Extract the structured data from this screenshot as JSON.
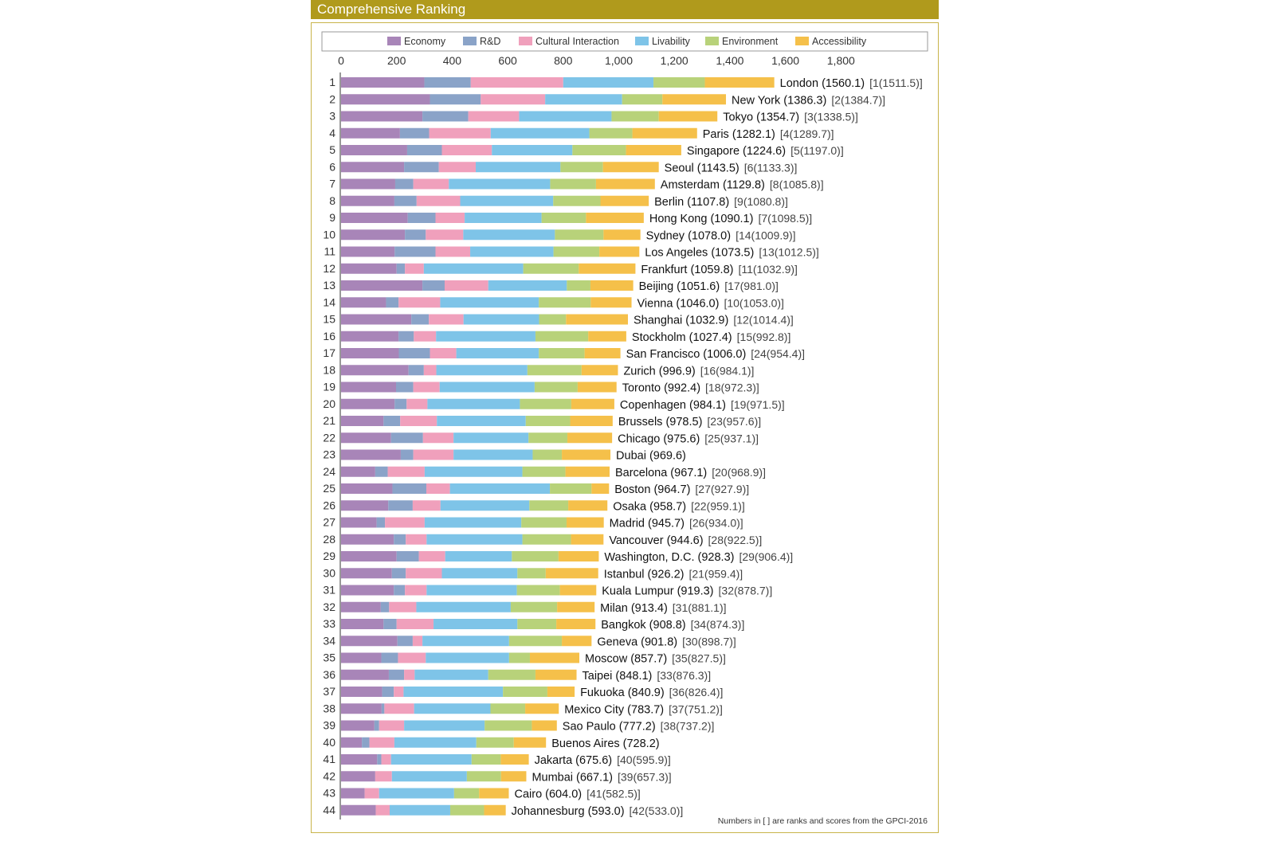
{
  "header": {
    "title": "Comprehensive Ranking"
  },
  "footnote": "Numbers in [  ] are ranks and scores from the GPCI-2016",
  "colors": {
    "Economy": "#a885b8",
    "R&D": "#8aa3c8",
    "Cultural Interaction": "#f0a0bc",
    "Livability": "#7ec4e8",
    "Environment": "#b8d27a",
    "Accessibility": "#f5c04a"
  },
  "chart_data": {
    "type": "bar",
    "orientation": "horizontal",
    "stacked": true,
    "xlim": [
      0,
      1800
    ],
    "xticks": [
      "0",
      "200",
      "400",
      "600",
      "800",
      "1,000",
      "1,200",
      "1,400",
      "1,600",
      "1,800"
    ],
    "legend": [
      "Economy",
      "R&D",
      "Cultural Interaction",
      "Livability",
      "Environment",
      "Accessibility"
    ],
    "legend_position": "top",
    "categories": [
      "1",
      "2",
      "3",
      "4",
      "5",
      "6",
      "7",
      "8",
      "9",
      "10",
      "11",
      "12",
      "13",
      "14",
      "15",
      "16",
      "17",
      "18",
      "19",
      "20",
      "21",
      "22",
      "23",
      "24",
      "25",
      "26",
      "27",
      "28",
      "29",
      "30",
      "31",
      "32",
      "33",
      "34",
      "35",
      "36",
      "37",
      "38",
      "39",
      "40",
      "41",
      "42",
      "43",
      "44"
    ],
    "cities": [
      "London (1560.1)",
      "New York (1386.3)",
      "Tokyo (1354.7)",
      "Paris (1282.1)",
      "Singapore (1224.6)",
      "Seoul (1143.5)",
      "Amsterdam (1129.8)",
      "Berlin (1107.8)",
      "Hong Kong (1090.1)",
      "Sydney (1078.0)",
      "Los Angeles (1073.5)",
      "Frankfurt (1059.8)",
      "Beijing (1051.6)",
      "Vienna (1046.0)",
      "Shanghai (1032.9)",
      "Stockholm (1027.4)",
      "San Francisco (1006.0)",
      "Zurich (996.9)",
      "Toronto (992.4)",
      "Copenhagen (984.1)",
      "Brussels (978.5)",
      "Chicago (975.6)",
      "Dubai (969.6)",
      "Barcelona (967.1)",
      "Boston (964.7)",
      "Osaka (958.7)",
      "Madrid (945.7)",
      "Vancouver (944.6)",
      "Washington, D.C. (928.3)",
      "Istanbul (926.2)",
      "Kuala Lumpur (919.3)",
      "Milan (913.4)",
      "Bangkok (908.8)",
      "Geneva (901.8)",
      "Moscow (857.7)",
      "Taipei (848.1)",
      "Fukuoka (840.9)",
      "Mexico City (783.7)",
      "Sao Paulo (777.2)",
      "Buenos Aires (728.2)",
      "Jakarta (675.6)",
      "Mumbai (667.1)",
      "Cairo (604.0)",
      "Johannesburg (593.0)"
    ],
    "previous": [
      "[1(1511.5)]",
      "[2(1384.7)]",
      "[3(1338.5)]",
      "[4(1289.7)]",
      "[5(1197.0)]",
      "[6(1133.3)]",
      "[8(1085.8)]",
      "[9(1080.8)]",
      "[7(1098.5)]",
      "[14(1009.9)]",
      "[13(1012.5)]",
      "[11(1032.9)]",
      "[17(981.0)]",
      "[10(1053.0)]",
      "[12(1014.4)]",
      "[15(992.8)]",
      "[24(954.4)]",
      "[16(984.1)]",
      "[18(972.3)]",
      "[19(971.5)]",
      "[23(957.6)]",
      "[25(937.1)]",
      "",
      "[20(968.9)]",
      "[27(927.9)]",
      "[22(959.1)]",
      "[26(934.0)]",
      "[28(922.5)]",
      "[29(906.4)]",
      "[21(959.4)]",
      "[32(878.7)]",
      "[31(881.1)]",
      "[34(874.3)]",
      "[30(898.7)]",
      "[35(827.5)]",
      "[33(876.3)]",
      "[36(826.4)]",
      "[37(751.2)]",
      "[38(737.2)]",
      "",
      "[40(595.9)]",
      "[39(657.3)]",
      "[41(582.5)]",
      "[42(533.0)]"
    ],
    "series": [
      {
        "name": "Economy",
        "values": [
          300,
          320,
          293,
          212,
          238,
          227,
          195,
          192,
          240,
          230,
          193,
          200,
          293,
          162,
          253,
          207,
          208,
          243,
          198,
          193,
          153,
          180,
          215,
          123,
          185,
          170,
          128,
          190,
          200,
          183,
          190,
          143,
          153,
          203,
          145,
          172,
          148,
          146,
          120,
          75,
          130,
          123,
          85,
          125
        ]
      },
      {
        "name": "R&D",
        "values": [
          167,
          183,
          165,
          105,
          125,
          125,
          65,
          80,
          100,
          75,
          147,
          30,
          80,
          45,
          63,
          55,
          112,
          55,
          62,
          43,
          60,
          115,
          45,
          45,
          122,
          88,
          30,
          43,
          80,
          50,
          40,
          30,
          47,
          55,
          60,
          55,
          42,
          10,
          17,
          27,
          15,
          0,
          0,
          0
        ]
      },
      {
        "name": "Cultural Interaction",
        "values": [
          333,
          232,
          183,
          222,
          180,
          133,
          128,
          157,
          105,
          135,
          125,
          68,
          157,
          150,
          125,
          80,
          95,
          45,
          95,
          75,
          132,
          110,
          145,
          133,
          85,
          100,
          143,
          75,
          95,
          130,
          78,
          98,
          133,
          35,
          100,
          38,
          35,
          107,
          90,
          90,
          35,
          60,
          52,
          50
        ]
      },
      {
        "name": "Livability",
        "values": [
          325,
          277,
          333,
          355,
          290,
          305,
          365,
          335,
          277,
          330,
          300,
          358,
          283,
          355,
          272,
          358,
          297,
          328,
          342,
          333,
          320,
          270,
          285,
          352,
          360,
          320,
          348,
          345,
          240,
          272,
          325,
          340,
          302,
          312,
          300,
          265,
          358,
          275,
          290,
          295,
          290,
          270,
          270,
          218
        ]
      },
      {
        "name": "Environment",
        "values": [
          185,
          145,
          170,
          155,
          193,
          153,
          165,
          170,
          160,
          175,
          165,
          200,
          85,
          187,
          97,
          190,
          165,
          195,
          155,
          185,
          160,
          140,
          105,
          155,
          150,
          140,
          163,
          175,
          168,
          102,
          155,
          167,
          140,
          190,
          75,
          170,
          160,
          125,
          170,
          135,
          105,
          123,
          90,
          122
        ]
      },
      {
        "name": "Accessibility",
        "values": [
          250,
          229,
          211,
          233,
          199,
          201,
          212,
          174,
          208,
          133,
          144,
          204,
          154,
          147,
          223,
          137,
          129,
          131,
          140,
          155,
          153,
          161,
          175,
          159,
          63,
          141,
          134,
          117,
          145,
          189,
          131,
          135,
          141,
          107,
          178,
          148,
          98,
          121,
          90,
          116,
          101,
          91,
          107,
          78
        ]
      }
    ]
  }
}
